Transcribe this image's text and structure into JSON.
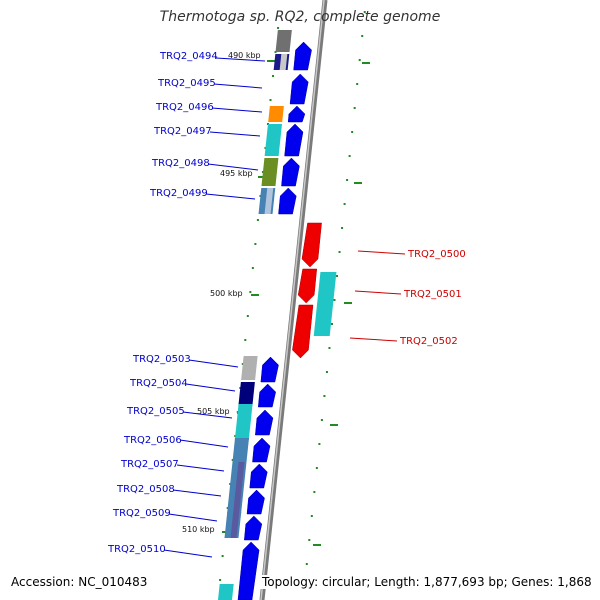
{
  "title": "Thermotoga sp. RQ2, complete genome",
  "footer": {
    "accession": "Accession: NC_010483",
    "topology": "Topology: circular; Length: 1,877,693 bp; Genes: 1,868"
  },
  "scale_labels": [
    "490 kbp",
    "495 kbp",
    "500 kbp",
    "505 kbp",
    "510 kbp"
  ],
  "genes": [
    {
      "id": "TRQ2_0494",
      "strand": "forward"
    },
    {
      "id": "TRQ2_0495",
      "strand": "forward"
    },
    {
      "id": "TRQ2_0496",
      "strand": "forward"
    },
    {
      "id": "TRQ2_0497",
      "strand": "forward"
    },
    {
      "id": "TRQ2_0498",
      "strand": "forward"
    },
    {
      "id": "TRQ2_0499",
      "strand": "forward"
    },
    {
      "id": "TRQ2_0500",
      "strand": "reverse"
    },
    {
      "id": "TRQ2_0501",
      "strand": "reverse"
    },
    {
      "id": "TRQ2_0502",
      "strand": "reverse"
    },
    {
      "id": "TRQ2_0503",
      "strand": "forward"
    },
    {
      "id": "TRQ2_0504",
      "strand": "forward"
    },
    {
      "id": "TRQ2_0505",
      "strand": "forward"
    },
    {
      "id": "TRQ2_0506",
      "strand": "forward"
    },
    {
      "id": "TRQ2_0507",
      "strand": "forward"
    },
    {
      "id": "TRQ2_0508",
      "strand": "forward"
    },
    {
      "id": "TRQ2_0509",
      "strand": "forward"
    },
    {
      "id": "TRQ2_0510",
      "strand": "forward"
    }
  ],
  "colors": {
    "forward_gene": "#0000ee",
    "reverse_gene": "#ee0000",
    "forward_label": "#0000cc",
    "reverse_label": "#cc0000",
    "backbone": "#888888",
    "ticks": "#228b22"
  }
}
